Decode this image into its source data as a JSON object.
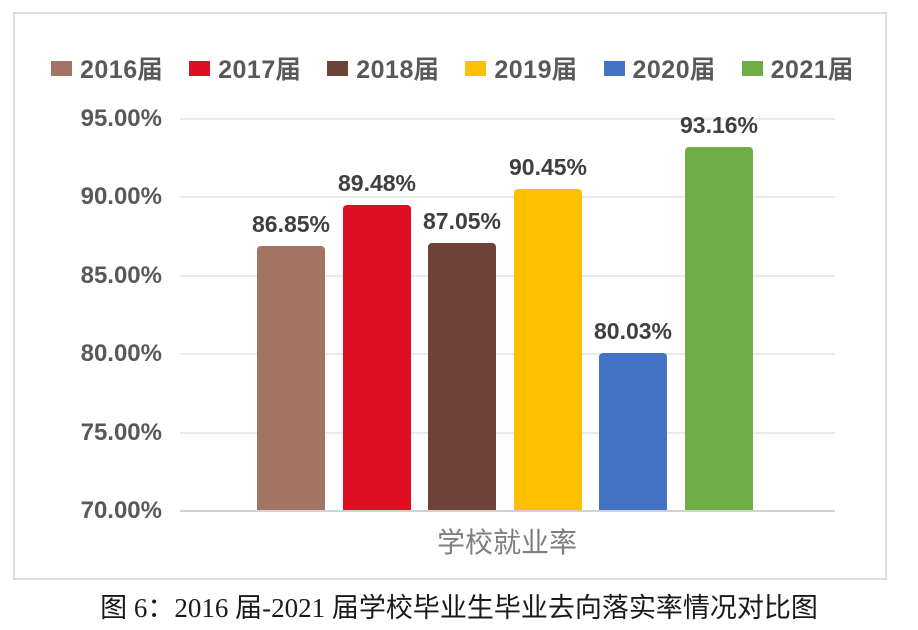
{
  "chart_data": {
    "type": "bar",
    "title": "",
    "xlabel": "学校就业率",
    "ylabel": "",
    "categories": [
      "学校就业率"
    ],
    "series": [
      {
        "name": "2016届",
        "value": 86.85,
        "label": "86.85%",
        "color": "#a37363"
      },
      {
        "name": "2017届",
        "value": 89.48,
        "label": "89.48%",
        "color": "#dd1021"
      },
      {
        "name": "2018届",
        "value": 87.05,
        "label": "87.05%",
        "color": "#6e4237"
      },
      {
        "name": "2019届",
        "value": 90.45,
        "label": "90.45%",
        "color": "#ffc000"
      },
      {
        "name": "2020届",
        "value": 80.03,
        "label": "80.03%",
        "color": "#4472c4"
      },
      {
        "name": "2021届",
        "value": 93.16,
        "label": "93.16%",
        "color": "#70ad47"
      }
    ],
    "y_ticks": [
      {
        "value": 95,
        "label": "95.00%"
      },
      {
        "value": 90,
        "label": "90.00%"
      },
      {
        "value": 85,
        "label": "85.00%"
      },
      {
        "value": 80,
        "label": "80.00%"
      },
      {
        "value": 75,
        "label": "75.00%"
      },
      {
        "value": 70,
        "label": "70.00%"
      }
    ],
    "ylim": [
      70,
      95
    ],
    "grid": true,
    "legend_position": "top"
  },
  "caption": "图 6：2016 届-2021 届学校毕业生毕业去向落实率情况对比图"
}
